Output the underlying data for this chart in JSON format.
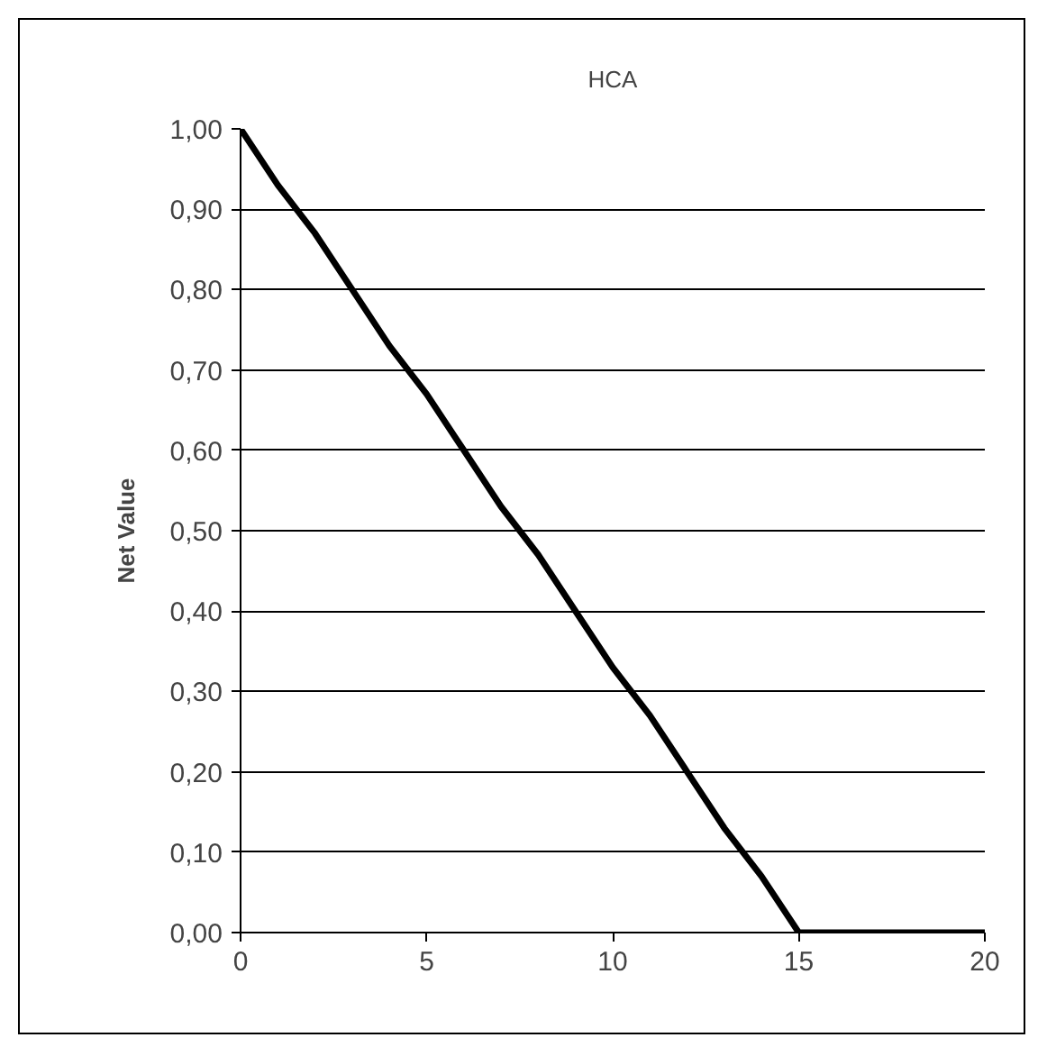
{
  "chart_data": {
    "type": "line",
    "title": "HCA",
    "ylabel": "Net Value",
    "x": [
      0,
      1,
      2,
      3,
      4,
      5,
      6,
      7,
      8,
      9,
      10,
      11,
      12,
      13,
      14,
      15,
      16,
      17,
      18,
      19,
      20
    ],
    "series": [
      {
        "color": "#000000",
        "values": [
          1,
          0.93,
          0.87,
          0.8,
          0.73,
          0.67,
          0.6,
          0.53,
          0.47,
          0.4,
          0.33,
          0.27,
          0.2,
          0.13,
          0.07,
          0,
          0,
          0,
          0,
          0,
          0
        ]
      }
    ],
    "xlim": [
      0,
      20
    ],
    "xticks": [
      0,
      5,
      10,
      15,
      20
    ],
    "ylim": [
      0,
      1
    ],
    "yticks": [
      {
        "value": 0,
        "label": "0,00"
      },
      {
        "value": 0.1,
        "label": "0,10"
      },
      {
        "value": 0.2,
        "label": "0,20"
      },
      {
        "value": 0.3,
        "label": "0,30"
      },
      {
        "value": 0.4,
        "label": "0,40"
      },
      {
        "value": 0.5,
        "label": "0,50"
      },
      {
        "value": 0.6,
        "label": "0,60"
      },
      {
        "value": 0.7,
        "label": "0,70"
      },
      {
        "value": 0.8,
        "label": "0,80"
      },
      {
        "value": 0.9,
        "label": "0,90"
      },
      {
        "value": 1,
        "label": "1,00"
      }
    ],
    "grid": "y",
    "marker": "none",
    "line_style": "solid"
  }
}
